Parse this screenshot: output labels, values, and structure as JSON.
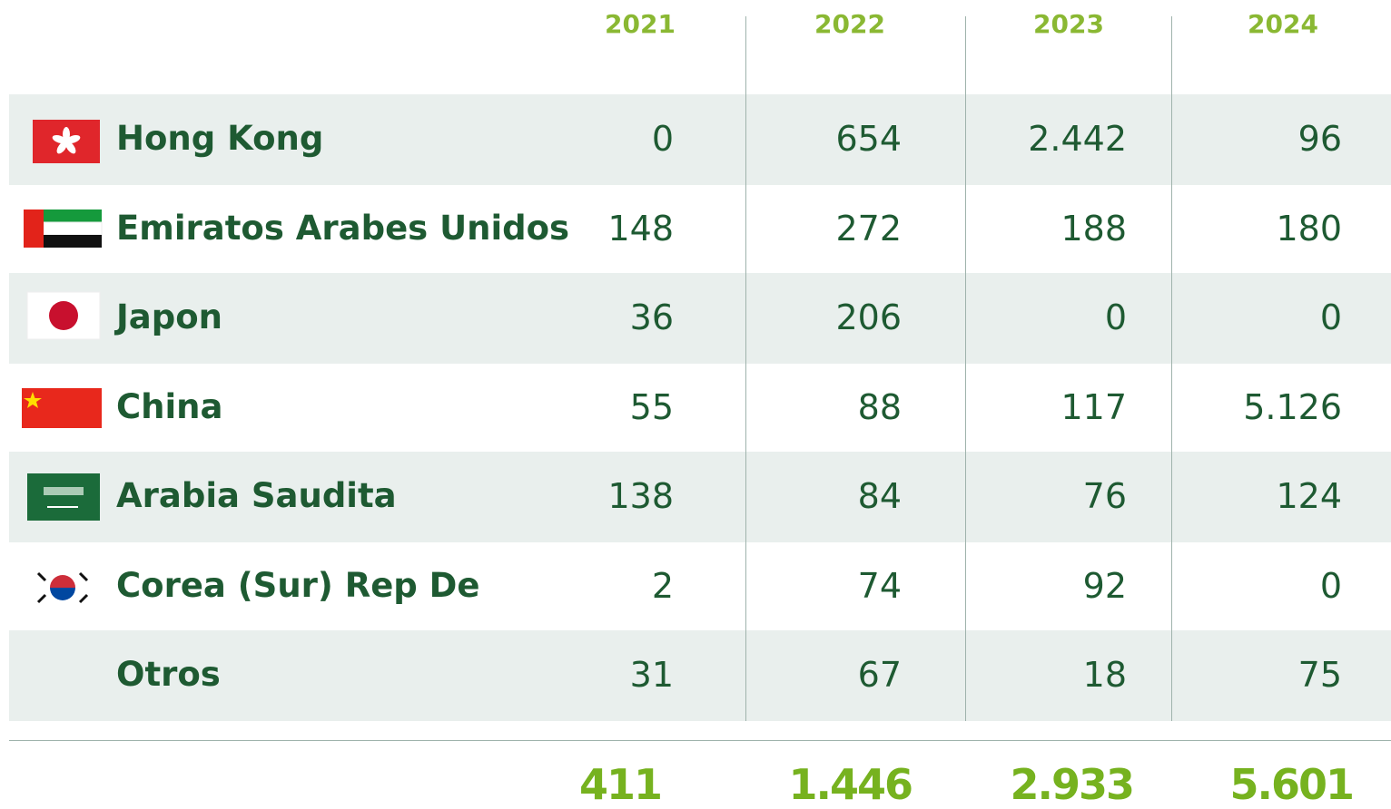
{
  "header": {
    "years": [
      "2021",
      "2022",
      "2023",
      "2024"
    ]
  },
  "rows": [
    {
      "country": "Hong Kong",
      "values": [
        "0",
        "654",
        "2.442",
        "96"
      ]
    },
    {
      "country": "Emiratos Arabes Unidos",
      "values": [
        "148",
        "272",
        "188",
        "180"
      ]
    },
    {
      "country": "Japon",
      "values": [
        "36",
        "206",
        "0",
        "0"
      ]
    },
    {
      "country": "China",
      "values": [
        "55",
        "88",
        "117",
        "5.126"
      ]
    },
    {
      "country": "Arabia Saudita",
      "values": [
        "138",
        "84",
        "76",
        "124"
      ]
    },
    {
      "country": "Corea (Sur) Rep De",
      "values": [
        "2",
        "74",
        "92",
        "0"
      ]
    },
    {
      "country": "Otros",
      "values": [
        "31",
        "67",
        "18",
        "75"
      ]
    }
  ],
  "totals": [
    "411",
    "1.446",
    "2.933",
    "5.601"
  ]
}
